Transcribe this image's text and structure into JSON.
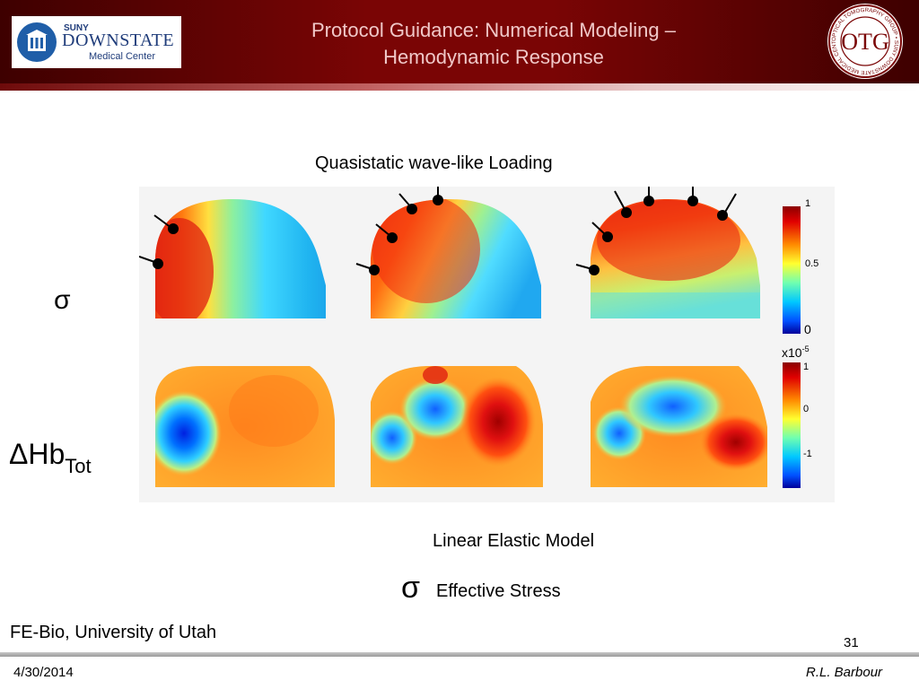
{
  "header": {
    "logo": {
      "suny": "SUNY",
      "name": "DOWNSTATE",
      "subtitle": "Medical Center"
    },
    "title_line1": "Protocol Guidance: Numerical Modeling –",
    "title_line2": "Hemodynamic Response",
    "seal": {
      "initials": "OTG",
      "ring_text": "OPTICAL TOMOGRAPHY GROUP • SUNY DOWNSTATE MEDICAL CENTER"
    }
  },
  "figure": {
    "caption_top": "Quasistatic wave-like Loading",
    "row_labels": {
      "sigma": "σ",
      "hb_main": "ΔHb",
      "hb_sub": "Tot"
    },
    "colorbar_top": {
      "max": "1",
      "mid": "0.5",
      "min": "0"
    },
    "colorbar_bottom": {
      "scale": "x10",
      "scale_exp": "-5",
      "max": "1",
      "mid": "0",
      "min": "-1"
    },
    "load_points": [
      2,
      4,
      6
    ]
  },
  "model_caption": "Linear Elastic Model",
  "legend": {
    "symbol": "σ",
    "text": "Effective Stress"
  },
  "credit": "FE-Bio, University of Utah",
  "page_number": "31",
  "footer": {
    "date": "4/30/2014",
    "author": "R.L. Barbour"
  },
  "colors": {
    "header": "#7a0505",
    "title_text": "#f0c8c8",
    "logo_blue": "#1f3c7a"
  }
}
